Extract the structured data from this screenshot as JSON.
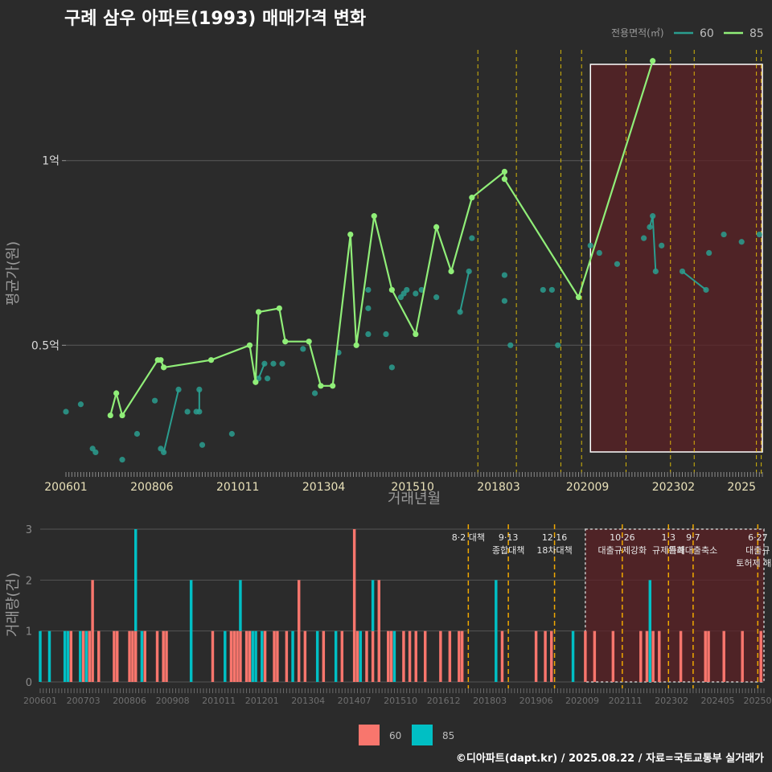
{
  "title": "구례 삼우 아파트(1993) 매매가격 변화",
  "caption": "©디아파트(dapt.kr) / 2025.08.22 / 자료=국토교통부 실거래가",
  "colors": {
    "background": "#2b2b2b",
    "line60": "#2a9d8f",
    "line85": "#90ee78",
    "bar60": "#f8766d",
    "bar85": "#00bfc4",
    "policy": "#ffd800",
    "highlight": "#5c2226"
  },
  "chart_data": [
    {
      "type": "line",
      "title": "구례 삼우 아파트(1993) 매매가격 변화",
      "xlabel": "거래년월",
      "ylabel": "평균가(원)",
      "legend_title": "전용면적(㎡)",
      "legend_position": "top-right",
      "x_ticks": [
        "200601",
        "200806",
        "201011",
        "201304",
        "201510",
        "201803",
        "202009",
        "202302",
        "2025"
      ],
      "y_ticks": [
        {
          "value": 0.5,
          "label": "0.5억"
        },
        {
          "value": 1.0,
          "label": "1억"
        }
      ],
      "y_unit": "억",
      "ylim": [
        0.15,
        1.3
      ],
      "grid": true,
      "policy_lines": [
        "2017-08",
        "2018-09",
        "2019-12",
        "2020-07",
        "2021-10",
        "2023-01",
        "2023-09",
        "2025-06",
        "2025-06"
      ],
      "highlight_range": [
        "2020-10",
        "2025-08"
      ],
      "series": [
        {
          "name": "60",
          "points": [
            [
              "2006-01",
              0.32
            ],
            [
              "2006-06",
              0.34
            ],
            [
              "2006-10",
              0.22
            ],
            [
              "2006-11",
              0.21
            ],
            [
              "2007-08",
              0.19
            ],
            [
              "2008-01",
              0.26
            ],
            [
              "2008-07",
              0.35
            ],
            [
              "2008-09",
              0.22
            ],
            [
              "2008-10",
              0.21
            ],
            [
              "2009-03",
              0.38
            ],
            [
              "2009-06",
              0.32
            ],
            [
              "2009-09",
              0.32
            ],
            [
              "2009-10",
              0.38
            ],
            [
              "2009-10",
              0.32
            ],
            [
              "2009-11",
              0.23
            ],
            [
              "2010-09",
              0.26
            ],
            [
              "2011-06",
              0.41
            ],
            [
              "2011-08",
              0.45
            ],
            [
              "2011-09",
              0.41
            ],
            [
              "2011-11",
              0.45
            ],
            [
              "2012-02",
              0.45
            ],
            [
              "2012-09",
              0.49
            ],
            [
              "2013-01",
              0.37
            ],
            [
              "2013-09",
              0.48
            ],
            [
              "2014-07",
              0.53
            ],
            [
              "2014-07",
              0.6
            ],
            [
              "2014-07",
              0.65
            ],
            [
              "2015-01",
              0.53
            ],
            [
              "2015-03",
              0.44
            ],
            [
              "2015-06",
              0.63
            ],
            [
              "2015-07",
              0.64
            ],
            [
              "2015-08",
              0.65
            ],
            [
              "2015-11",
              0.64
            ],
            [
              "2016-01",
              0.65
            ],
            [
              "2016-06",
              0.63
            ],
            [
              "2017-02",
              0.59
            ],
            [
              "2017-05",
              0.7
            ],
            [
              "2017-06",
              0.79
            ],
            [
              "2018-05",
              0.69
            ],
            [
              "2018-05",
              0.62
            ],
            [
              "2018-07",
              0.5
            ],
            [
              "2019-06",
              0.65
            ],
            [
              "2019-09",
              0.65
            ],
            [
              "2019-11",
              0.5
            ],
            [
              "2020-10",
              0.77
            ],
            [
              "2021-01",
              0.75
            ],
            [
              "2021-07",
              0.72
            ],
            [
              "2022-04",
              0.79
            ],
            [
              "2022-06",
              0.82
            ],
            [
              "2022-07",
              0.85
            ],
            [
              "2022-08",
              0.7
            ],
            [
              "2022-10",
              0.77
            ],
            [
              "2023-05",
              0.7
            ],
            [
              "2024-01",
              0.65
            ],
            [
              "2024-02",
              0.75
            ],
            [
              "2024-07",
              0.8
            ],
            [
              "2025-01",
              0.78
            ],
            [
              "2025-07",
              0.8
            ]
          ]
        },
        {
          "name": "85",
          "points": [
            [
              "2007-04",
              0.31
            ],
            [
              "2007-06",
              0.37
            ],
            [
              "2007-08",
              0.31
            ],
            [
              "2008-08",
              0.46
            ],
            [
              "2008-09",
              0.46
            ],
            [
              "2008-10",
              0.44
            ],
            [
              "2010-02",
              0.46
            ],
            [
              "2011-03",
              0.5
            ],
            [
              "2011-05",
              0.4
            ],
            [
              "2011-06",
              0.59
            ],
            [
              "2012-01",
              0.6
            ],
            [
              "2012-03",
              0.51
            ],
            [
              "2012-11",
              0.51
            ],
            [
              "2013-03",
              0.39
            ],
            [
              "2013-07",
              0.39
            ],
            [
              "2014-01",
              0.8
            ],
            [
              "2014-03",
              0.5
            ],
            [
              "2014-09",
              0.85
            ],
            [
              "2015-03",
              0.65
            ],
            [
              "2015-11",
              0.53
            ],
            [
              "2016-06",
              0.82
            ],
            [
              "2016-11",
              0.7
            ],
            [
              "2017-06",
              0.9
            ],
            [
              "2018-05",
              0.97
            ],
            [
              "2018-05",
              0.95
            ],
            [
              "2020-06",
              0.63
            ],
            [
              "2022-07",
              1.27
            ]
          ]
        }
      ]
    },
    {
      "type": "bar",
      "ylabel": "거래량(건)",
      "ylim": [
        0,
        3
      ],
      "y_ticks": [
        0,
        1,
        2,
        3
      ],
      "x_ticks": [
        "200601",
        "200703",
        "200806",
        "200908",
        "201011",
        "201201",
        "201304",
        "201407",
        "201510",
        "201612",
        "201803",
        "201906",
        "202009",
        "202111",
        "202302",
        "202405",
        "20250"
      ],
      "legend": [
        "60",
        "85"
      ],
      "legend_position": "bottom",
      "highlight_range": [
        "2020-10",
        "2025-08"
      ],
      "policy_annotations": [
        {
          "date": "2017-08",
          "lines": [
            "8·2 대책"
          ]
        },
        {
          "date": "2018-09",
          "lines": [
            "9·13",
            "종합대책"
          ]
        },
        {
          "date": "2019-12",
          "lines": [
            "12·16",
            "18차대책"
          ]
        },
        {
          "date": "2021-10",
          "lines": [
            "10·26",
            "대출규제강화"
          ]
        },
        {
          "date": "2023-01",
          "lines": [
            "1·3",
            "규제완화"
          ]
        },
        {
          "date": "2023-09",
          "lines": [
            "9·7",
            "특례대출축소"
          ]
        },
        {
          "date": "2025-06",
          "lines": [
            "6·27",
            "대출규",
            "토허제 해제"
          ]
        }
      ],
      "bars": [
        [
          "2006-01",
          0,
          1
        ],
        [
          "2006-04",
          0,
          1
        ],
        [
          "2006-09",
          0,
          1
        ],
        [
          "2006-10",
          0,
          1
        ],
        [
          "2006-11",
          1,
          0
        ],
        [
          "2007-02",
          0,
          1
        ],
        [
          "2007-03",
          1,
          0
        ],
        [
          "2007-04",
          0,
          1
        ],
        [
          "2007-05",
          1,
          0
        ],
        [
          "2007-06",
          2,
          0
        ],
        [
          "2007-08",
          1,
          0
        ],
        [
          "2008-01",
          1,
          0
        ],
        [
          "2008-02",
          1,
          0
        ],
        [
          "2008-06",
          1,
          0
        ],
        [
          "2008-07",
          1,
          0
        ],
        [
          "2008-08",
          1,
          2
        ],
        [
          "2008-10",
          0,
          1
        ],
        [
          "2008-11",
          1,
          0
        ],
        [
          "2009-03",
          1,
          0
        ],
        [
          "2009-05",
          1,
          0
        ],
        [
          "2009-06",
          1,
          0
        ],
        [
          "2010-02",
          0,
          2
        ],
        [
          "2010-09",
          1,
          0
        ],
        [
          "2011-01",
          0,
          1
        ],
        [
          "2011-03",
          1,
          0
        ],
        [
          "2011-04",
          1,
          0
        ],
        [
          "2011-05",
          1,
          0
        ],
        [
          "2011-06",
          1,
          1
        ],
        [
          "2011-08",
          1,
          0
        ],
        [
          "2011-09",
          1,
          0
        ],
        [
          "2011-10",
          0,
          1
        ],
        [
          "2011-11",
          0,
          1
        ],
        [
          "2012-01",
          0,
          1
        ],
        [
          "2012-02",
          1,
          0
        ],
        [
          "2012-05",
          1,
          0
        ],
        [
          "2012-06",
          1,
          0
        ],
        [
          "2012-09",
          1,
          0
        ],
        [
          "2012-11",
          0,
          1
        ],
        [
          "2013-01",
          2,
          0
        ],
        [
          "2013-03",
          1,
          0
        ],
        [
          "2013-07",
          0,
          1
        ],
        [
          "2013-09",
          1,
          0
        ],
        [
          "2014-01",
          0,
          1
        ],
        [
          "2014-03",
          1,
          0
        ],
        [
          "2014-07",
          3,
          0
        ],
        [
          "2014-08",
          1,
          0
        ],
        [
          "2014-09",
          0,
          1
        ],
        [
          "2014-11",
          1,
          0
        ],
        [
          "2015-01",
          1,
          1
        ],
        [
          "2015-03",
          2,
          0
        ],
        [
          "2015-06",
          1,
          0
        ],
        [
          "2015-07",
          1,
          0
        ],
        [
          "2015-08",
          0,
          1
        ],
        [
          "2015-11",
          1,
          0
        ],
        [
          "2016-01",
          1,
          0
        ],
        [
          "2016-03",
          1,
          0
        ],
        [
          "2016-06",
          1,
          0
        ],
        [
          "2016-11",
          1,
          0
        ],
        [
          "2017-02",
          1,
          0
        ],
        [
          "2017-05",
          1,
          0
        ],
        [
          "2017-06",
          1,
          0
        ],
        [
          "2018-05",
          0,
          2
        ],
        [
          "2018-07",
          1,
          0
        ],
        [
          "2019-06",
          1,
          0
        ],
        [
          "2019-09",
          1,
          0
        ],
        [
          "2019-11",
          1,
          0
        ],
        [
          "2020-06",
          0,
          1
        ],
        [
          "2020-10",
          1,
          0
        ],
        [
          "2021-01",
          1,
          0
        ],
        [
          "2021-07",
          1,
          0
        ],
        [
          "2022-04",
          1,
          0
        ],
        [
          "2022-06",
          1,
          0
        ],
        [
          "2022-07",
          0,
          2
        ],
        [
          "2022-08",
          1,
          0
        ],
        [
          "2022-10",
          1,
          0
        ],
        [
          "2023-05",
          1,
          0
        ],
        [
          "2024-01",
          1,
          0
        ],
        [
          "2024-02",
          1,
          0
        ],
        [
          "2024-07",
          1,
          0
        ],
        [
          "2025-01",
          1,
          0
        ],
        [
          "2025-07",
          1,
          0
        ]
      ]
    }
  ]
}
